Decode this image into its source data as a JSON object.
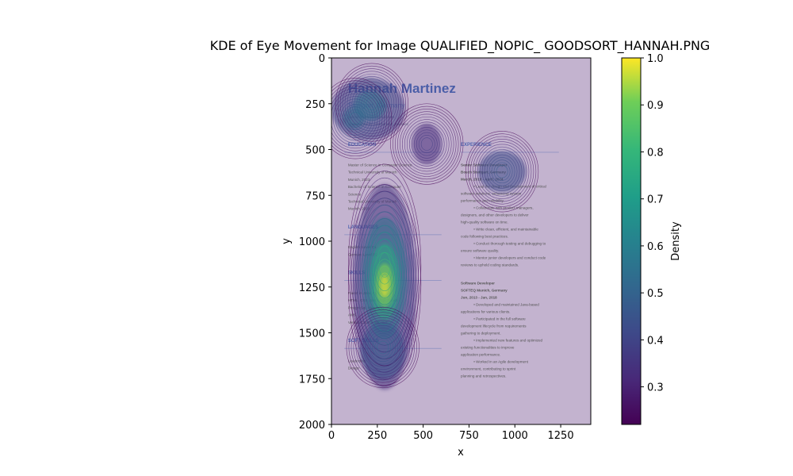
{
  "chart_data": {
    "type": "heatmap",
    "title": "KDE of Eye Movement for Image QUALIFIED_NOPIC_ GOODSORT_HANNAH.PNG",
    "xlabel": "x",
    "ylabel": "y",
    "xlim": [
      0,
      1414
    ],
    "ylim": [
      2000,
      0
    ],
    "x_ticks": [
      0,
      250,
      500,
      750,
      1000,
      1250
    ],
    "y_ticks": [
      0,
      250,
      500,
      750,
      1000,
      1250,
      1500,
      1750,
      2000
    ],
    "colorbar": {
      "label": "Density",
      "range": [
        0.22,
        1.0
      ],
      "ticks": [
        0.3,
        0.4,
        0.5,
        0.6,
        0.7,
        0.8,
        0.9,
        1.0
      ],
      "colormap": "viridis"
    },
    "peaks": [
      {
        "x": 290,
        "y": 1240,
        "density": 1.0
      },
      {
        "x": 290,
        "y": 1130,
        "density": 0.85
      },
      {
        "x": 280,
        "y": 1580,
        "density": 0.55
      },
      {
        "x": 220,
        "y": 250,
        "density": 0.6
      },
      {
        "x": 130,
        "y": 330,
        "density": 0.55
      },
      {
        "x": 930,
        "y": 620,
        "density": 0.5
      },
      {
        "x": 520,
        "y": 470,
        "density": 0.4
      }
    ]
  },
  "background_document": {
    "name": "Hannah Martinez",
    "location": "Stuttgart, Germany",
    "contact_lines": [
      "hannah.martinez@gmail.com",
      "@www.linkedin.com/hannah_martinez"
    ],
    "left_column": [
      {
        "heading": "EDUCATION",
        "lines": [
          "Master of Science in Computer Science",
          "Technical University of Munich",
          "Munich, 2023",
          "Bachelor of Science in Computer",
          "Science",
          "Technical University of Munich",
          "Munich, 2010"
        ]
      },
      {
        "heading": "LANGUAGES",
        "lines": [
          "English: Level C1",
          "German: Level B2"
        ]
      },
      {
        "heading": "SKILLS",
        "lines": [
          "Fluent in Java, Python, C++",
          "HTML, CSS, Javascript, React",
          "PostgreSql, MongoDB",
          "AWS",
          "Version Control with GIT"
        ]
      },
      {
        "heading": "SOFT SKILLS",
        "lines": [
          "Leadership",
          "Design"
        ]
      }
    ],
    "right_column": [
      {
        "heading": "EXPERIENCE",
        "lines": [
          "Senior Software Developer",
          "Bosch Stuttgart, Germany",
          "March, 2018 - April, 2024",
          "Lead the design and development of critical",
          "software solutions, enhancing system",
          "performance and reliability.",
          "Collaborate with product managers,",
          "designers, and other developers to deliver",
          "high-quality software on time.",
          "Write clean, efficient, and maintainable",
          "code following best practices.",
          "Conduct thorough testing and debugging to",
          "ensure software quality.",
          "Mentor junior developers and conduct code",
          "reviews to uphold coding standards."
        ]
      },
      {
        "heading": "",
        "lines": [
          "Software Developer",
          "SOFTEQ Munich, Germany",
          "Jun, 2013 - Jan, 2018",
          "Developed and maintained Java-based",
          "applications for various clients.",
          "Participated in the full software",
          "development lifecycle from requirements",
          "gathering to deployment.",
          "Implemented new features and optimized",
          "existing functionalities to improve",
          "application performance.",
          "Worked in an Agile development",
          "environment, contributing to sprint",
          "planning and retrospectives."
        ]
      }
    ]
  }
}
